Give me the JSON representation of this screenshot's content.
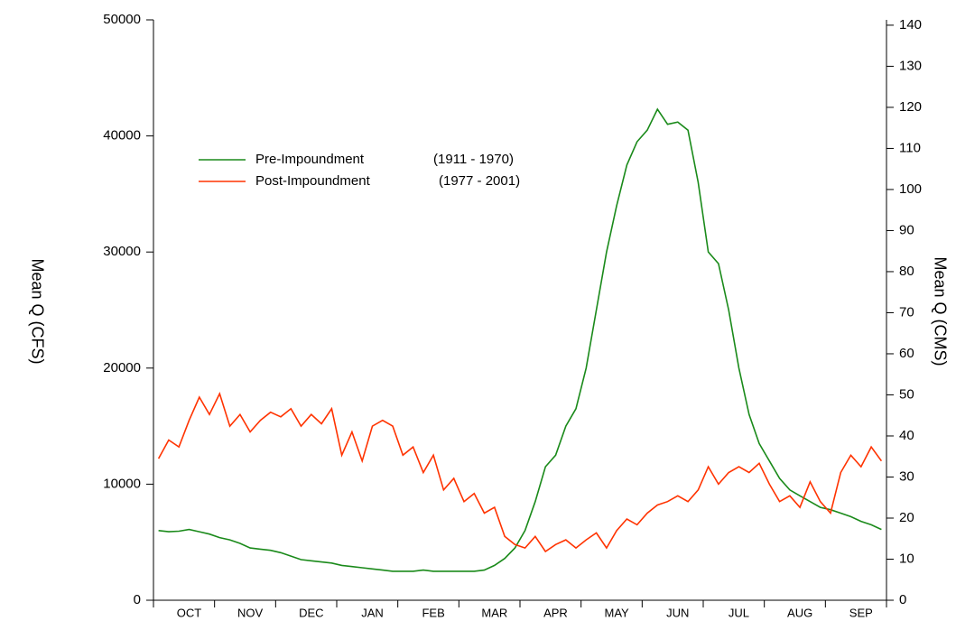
{
  "chart_data": {
    "type": "line",
    "legend": [
      {
        "name": "Pre-Impoundment",
        "period": "(1911 - 1970)"
      },
      {
        "name": "Post-Impoundment",
        "period": "(1977 - 2001)"
      }
    ],
    "ylabel": "Mean Q (CFS)",
    "y2label": "Mean Q (CMS)",
    "ylim": [
      0,
      50000
    ],
    "yticks": [
      0,
      10000,
      20000,
      30000,
      40000,
      50000
    ],
    "y2lim": [
      0,
      141.3
    ],
    "y2ticks": [
      0,
      10,
      20,
      30,
      40,
      50,
      60,
      70,
      80,
      90,
      100,
      110,
      120,
      130,
      140
    ],
    "categories": [
      null,
      null,
      null,
      "OCT",
      null,
      null,
      null,
      null,
      null,
      "NOV",
      null,
      null,
      null,
      null,
      null,
      "DEC",
      null,
      null,
      null,
      null,
      null,
      "JAN",
      null,
      null,
      null,
      null,
      null,
      "FEB",
      null,
      null,
      null,
      null,
      null,
      "MAR",
      null,
      null,
      null,
      null,
      null,
      "APR",
      null,
      null,
      null,
      null,
      null,
      "MAY",
      null,
      null,
      null,
      null,
      null,
      "JUN",
      null,
      null,
      null,
      null,
      null,
      "JUL",
      null,
      null,
      null,
      null,
      null,
      "AUG",
      null,
      null,
      null,
      null,
      null,
      "SEP",
      null,
      null
    ],
    "series": [
      {
        "name": "Pre-Impoundment   (1911 - 1970)",
        "color": "#1a8a1a",
        "values": [
          6000,
          5900,
          5950,
          6100,
          5900,
          5700,
          5400,
          5200,
          4900,
          4500,
          4400,
          4300,
          4100,
          3800,
          3500,
          3400,
          3300,
          3200,
          3000,
          2900,
          2800,
          2700,
          2600,
          2500,
          2500,
          2500,
          2600,
          2500,
          2500,
          2500,
          2500,
          2500,
          2600,
          3000,
          3600,
          4500,
          6000,
          8500,
          11500,
          12500,
          15000,
          16500,
          20000,
          25000,
          30000,
          34000,
          37500,
          39500,
          40500,
          42300,
          41000,
          41200,
          40500,
          36000,
          30000,
          29000,
          25000,
          20000,
          16000,
          13500,
          12000,
          10500,
          9500,
          9000,
          8500,
          8000,
          7800,
          7500,
          7200,
          6800,
          6500,
          6100
        ]
      },
      {
        "name": "Post-Impoundment  (1977 - 2001)",
        "color": "#ff3300",
        "values": [
          12200,
          13800,
          13200,
          15500,
          17500,
          16000,
          17800,
          15000,
          16000,
          14500,
          15500,
          16200,
          15800,
          16500,
          15000,
          16000,
          15200,
          16500,
          12500,
          14500,
          12000,
          15000,
          15500,
          15000,
          12500,
          13200,
          11000,
          12500,
          9500,
          10500,
          8500,
          9200,
          7500,
          8000,
          5500,
          4800,
          4500,
          5500,
          4200,
          4800,
          5200,
          4500,
          5200,
          5800,
          4500,
          6000,
          7000,
          6500,
          7500,
          8200,
          8500,
          9000,
          8500,
          9500,
          11500,
          10000,
          11000,
          11500,
          11000,
          11800,
          10000,
          8500,
          9000,
          8000,
          10200,
          8500,
          7500,
          11000,
          12500,
          11500,
          13200,
          12000
        ]
      }
    ]
  }
}
